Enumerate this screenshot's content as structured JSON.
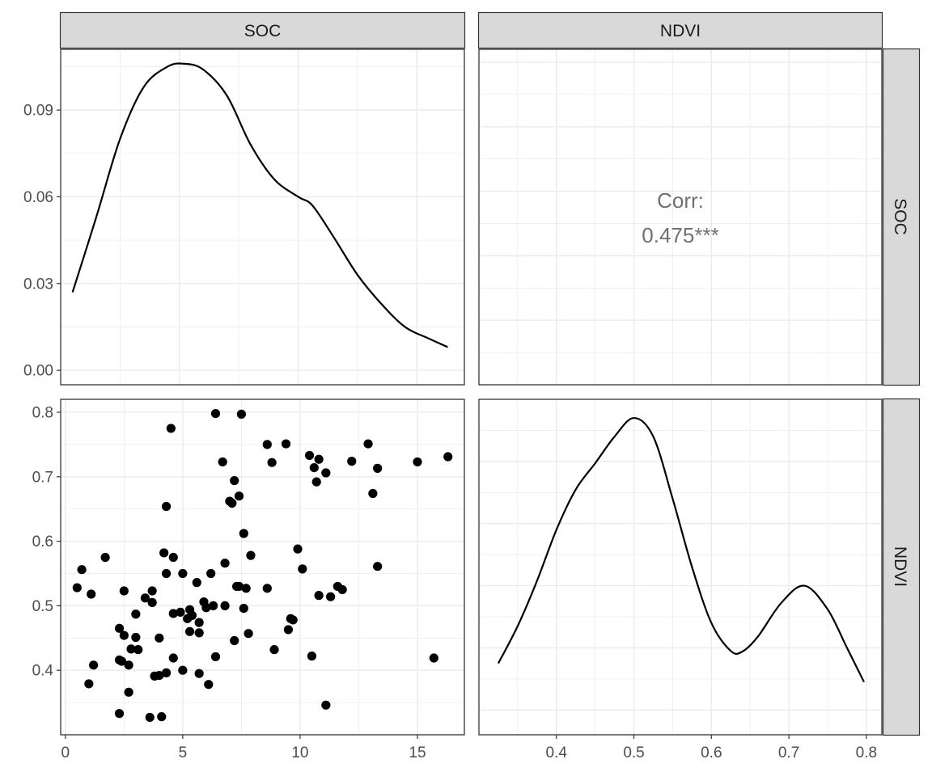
{
  "chart_data": {
    "type": "scatter",
    "kind": "pair-plot matrix",
    "variables": [
      "SOC",
      "NDVI"
    ],
    "panels": [
      {
        "id": "soc-density",
        "row": "SOC",
        "col": "SOC",
        "type": "line",
        "xlim": [
          0,
          17
        ],
        "ylim": [
          -0.005,
          0.111
        ],
        "yticks": [
          0.0,
          0.03,
          0.06,
          0.09
        ],
        "yticklabels": [
          "0.00",
          "0.03",
          "0.06",
          "0.09"
        ],
        "points": [
          [
            0.5,
            0.027
          ],
          [
            1.5,
            0.053
          ],
          [
            2.5,
            0.08
          ],
          [
            3.5,
            0.098
          ],
          [
            4.5,
            0.105
          ],
          [
            5.2,
            0.106
          ],
          [
            6.0,
            0.104
          ],
          [
            7.0,
            0.095
          ],
          [
            8.0,
            0.078
          ],
          [
            9.0,
            0.066
          ],
          [
            10.0,
            0.06
          ],
          [
            10.6,
            0.057
          ],
          [
            11.5,
            0.046
          ],
          [
            12.5,
            0.033
          ],
          [
            13.5,
            0.023
          ],
          [
            14.5,
            0.015
          ],
          [
            15.5,
            0.011
          ],
          [
            16.3,
            0.008
          ]
        ]
      },
      {
        "id": "corr",
        "row": "SOC",
        "col": "NDVI",
        "type": "text",
        "label": "Corr:",
        "value": "0.475***"
      },
      {
        "id": "scatter",
        "row": "NDVI",
        "col": "SOC",
        "type": "scatter",
        "xlim": [
          -0.2,
          17
        ],
        "ylim": [
          0.3,
          0.82
        ],
        "xticks": [
          0,
          5,
          10,
          15
        ],
        "xticklabels": [
          "0",
          "5",
          "10",
          "15"
        ],
        "yticks": [
          0.4,
          0.5,
          0.6,
          0.7,
          0.8
        ],
        "yticklabels": [
          "0.4",
          "0.5",
          "0.6",
          "0.7",
          "0.8"
        ],
        "points": [
          [
            0.5,
            0.528
          ],
          [
            0.7,
            0.556
          ],
          [
            1.0,
            0.379
          ],
          [
            1.1,
            0.518
          ],
          [
            1.2,
            0.408
          ],
          [
            1.7,
            0.575
          ],
          [
            2.3,
            0.333
          ],
          [
            2.3,
            0.416
          ],
          [
            2.3,
            0.465
          ],
          [
            2.4,
            0.414
          ],
          [
            2.5,
            0.523
          ],
          [
            2.5,
            0.454
          ],
          [
            2.7,
            0.408
          ],
          [
            2.7,
            0.366
          ],
          [
            2.8,
            0.433
          ],
          [
            3.0,
            0.487
          ],
          [
            3.0,
            0.451
          ],
          [
            3.1,
            0.432
          ],
          [
            3.4,
            0.512
          ],
          [
            3.6,
            0.327
          ],
          [
            3.7,
            0.505
          ],
          [
            3.7,
            0.523
          ],
          [
            3.8,
            0.391
          ],
          [
            4.0,
            0.392
          ],
          [
            4.0,
            0.45
          ],
          [
            4.1,
            0.328
          ],
          [
            4.2,
            0.582
          ],
          [
            4.3,
            0.654
          ],
          [
            4.3,
            0.55
          ],
          [
            4.3,
            0.396
          ],
          [
            4.5,
            0.775
          ],
          [
            4.6,
            0.575
          ],
          [
            4.6,
            0.419
          ],
          [
            4.6,
            0.488
          ],
          [
            4.9,
            0.49
          ],
          [
            5.0,
            0.55
          ],
          [
            5.0,
            0.4
          ],
          [
            5.2,
            0.48
          ],
          [
            5.3,
            0.494
          ],
          [
            5.3,
            0.46
          ],
          [
            5.4,
            0.485
          ],
          [
            5.6,
            0.536
          ],
          [
            5.7,
            0.474
          ],
          [
            5.7,
            0.458
          ],
          [
            5.7,
            0.395
          ],
          [
            5.9,
            0.506
          ],
          [
            6.0,
            0.497
          ],
          [
            6.1,
            0.378
          ],
          [
            6.2,
            0.55
          ],
          [
            6.3,
            0.5
          ],
          [
            6.4,
            0.798
          ],
          [
            6.4,
            0.421
          ],
          [
            6.7,
            0.723
          ],
          [
            6.8,
            0.566
          ],
          [
            6.8,
            0.5
          ],
          [
            7.0,
            0.662
          ],
          [
            7.1,
            0.659
          ],
          [
            7.2,
            0.694
          ],
          [
            7.2,
            0.446
          ],
          [
            7.3,
            0.53
          ],
          [
            7.4,
            0.53
          ],
          [
            7.4,
            0.67
          ],
          [
            7.5,
            0.797
          ],
          [
            7.6,
            0.496
          ],
          [
            7.6,
            0.612
          ],
          [
            7.7,
            0.527
          ],
          [
            7.8,
            0.457
          ],
          [
            7.9,
            0.578
          ],
          [
            8.6,
            0.75
          ],
          [
            8.6,
            0.527
          ],
          [
            8.8,
            0.722
          ],
          [
            8.9,
            0.432
          ],
          [
            9.4,
            0.751
          ],
          [
            9.5,
            0.463
          ],
          [
            9.6,
            0.48
          ],
          [
            9.7,
            0.478
          ],
          [
            9.9,
            0.588
          ],
          [
            10.1,
            0.557
          ],
          [
            10.4,
            0.733
          ],
          [
            10.5,
            0.422
          ],
          [
            10.6,
            0.714
          ],
          [
            10.7,
            0.692
          ],
          [
            10.8,
            0.727
          ],
          [
            10.8,
            0.516
          ],
          [
            11.1,
            0.706
          ],
          [
            11.1,
            0.346
          ],
          [
            11.3,
            0.514
          ],
          [
            11.6,
            0.53
          ],
          [
            11.8,
            0.525
          ],
          [
            12.2,
            0.724
          ],
          [
            12.9,
            0.751
          ],
          [
            13.1,
            0.674
          ],
          [
            13.3,
            0.713
          ],
          [
            13.3,
            0.561
          ],
          [
            15.0,
            0.723
          ],
          [
            15.7,
            0.419
          ],
          [
            16.3,
            0.731
          ]
        ]
      },
      {
        "id": "ndvi-density",
        "row": "NDVI",
        "col": "NDVI",
        "type": "line",
        "xlim": [
          0.3,
          0.82
        ],
        "ylim": [
          -0.4,
          5.0
        ],
        "xticks": [
          0.4,
          0.5,
          0.6,
          0.7,
          0.8
        ],
        "xticklabels": [
          "0.4",
          "0.5",
          "0.6",
          "0.7",
          "0.8"
        ],
        "points": [
          [
            0.325,
            0.75
          ],
          [
            0.35,
            1.35
          ],
          [
            0.375,
            2.08
          ],
          [
            0.4,
            2.9
          ],
          [
            0.425,
            3.55
          ],
          [
            0.45,
            3.97
          ],
          [
            0.475,
            4.4
          ],
          [
            0.5,
            4.7
          ],
          [
            0.525,
            4.4
          ],
          [
            0.55,
            3.4
          ],
          [
            0.575,
            2.3
          ],
          [
            0.6,
            1.4
          ],
          [
            0.625,
            0.95
          ],
          [
            0.64,
            0.94
          ],
          [
            0.66,
            1.18
          ],
          [
            0.69,
            1.72
          ],
          [
            0.72,
            2.0
          ],
          [
            0.75,
            1.62
          ],
          [
            0.775,
            1.0
          ],
          [
            0.797,
            0.45
          ]
        ]
      }
    ],
    "grid": true
  }
}
